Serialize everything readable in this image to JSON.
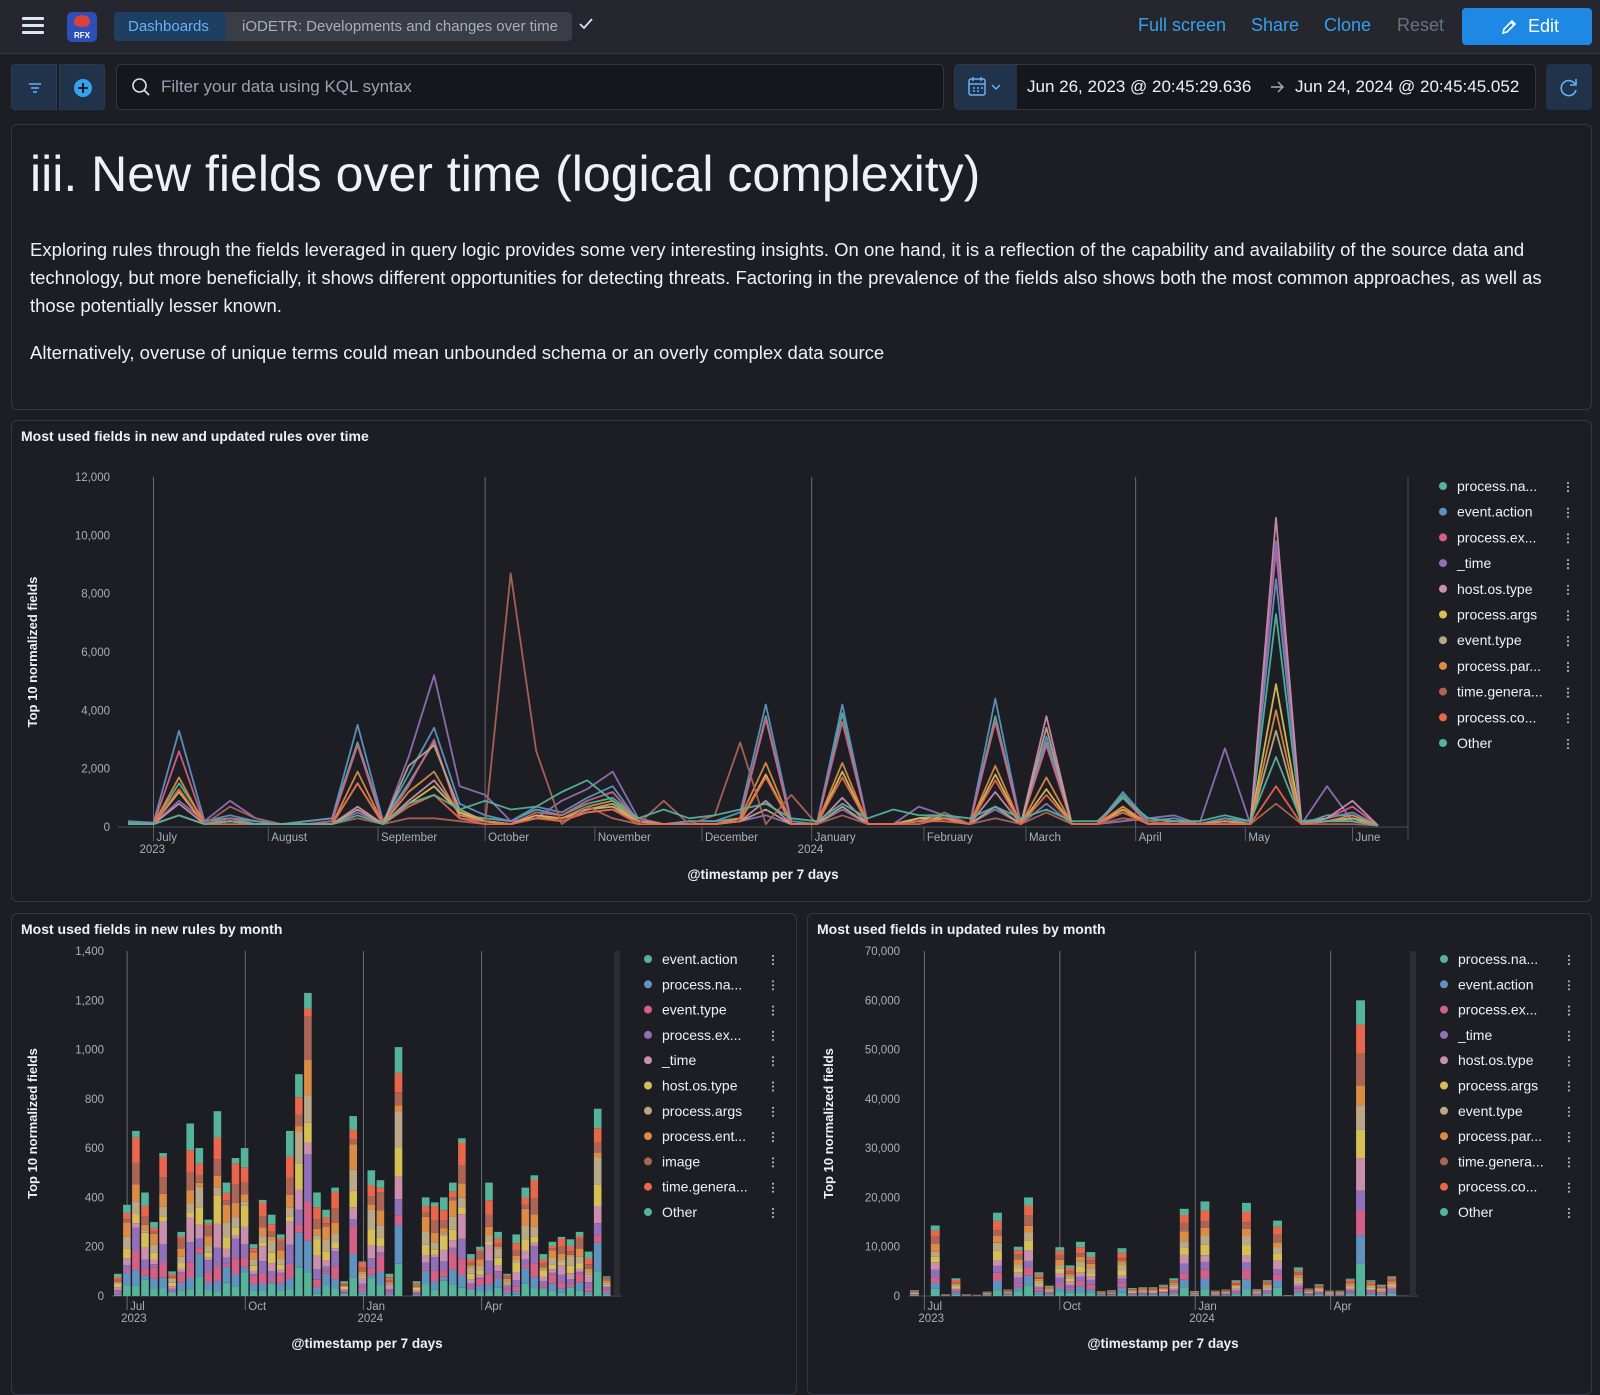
{
  "header": {
    "breadcrumb_root": "Dashboards",
    "breadcrumb_current": "iODETR: Developments and changes over time",
    "logo_text": "RFX",
    "links": {
      "full_screen": "Full screen",
      "share": "Share",
      "clone": "Clone",
      "reset": "Reset"
    },
    "edit_label": "Edit"
  },
  "filter": {
    "placeholder": "Filter your data using KQL syntax",
    "start": "Jun 26, 2023 @ 20:45:29.636",
    "end": "Jun 24, 2024 @ 20:45:45.052"
  },
  "markdown": {
    "title": "iii. New fields over time (logical complexity)",
    "p1": "Exploring rules through the fields leveraged in query logic provides some very interesting insights. On one hand, it is a reflection of the capability and availability of the source data and technology, but more beneficially, it shows different opportunities for detecting threats. Factoring in the prevalence of the fields also shows both the most common approaches, as well as those potentially lesser known.",
    "p2": "Alternatively, overuse of unique terms could mean unbounded schema or an overly complex data source"
  },
  "colors": [
    "#54b399",
    "#6092c0",
    "#d36086",
    "#9170b8",
    "#ca8eae",
    "#d6bf57",
    "#b9a888",
    "#da8b45",
    "#aa6556",
    "#e7664c",
    "#54b399"
  ],
  "chart_data": [
    {
      "type": "line",
      "title": "Most used fields in new and updated rules over time",
      "xlabel": "@timestamp per 7 days",
      "ylabel": "Top 10 normalized fields",
      "ylim": [
        0,
        12000
      ],
      "yticks": [
        "0",
        "2,000",
        "4,000",
        "6,000",
        "8,000",
        "10,000",
        "12,000"
      ],
      "xticks": [
        {
          "label": "July",
          "sub": "2023",
          "week": 1
        },
        {
          "label": "August",
          "week": 5.5
        },
        {
          "label": "September",
          "week": 9.8
        },
        {
          "label": "October",
          "week": 14
        },
        {
          "label": "November",
          "week": 18.3
        },
        {
          "label": "December",
          "week": 22.5
        },
        {
          "label": "January",
          "sub": "2024",
          "week": 26.8
        },
        {
          "label": "February",
          "week": 31.2
        },
        {
          "label": "March",
          "week": 35.2
        },
        {
          "label": "April",
          "week": 39.5
        },
        {
          "label": "May",
          "week": 43.8
        },
        {
          "label": "June",
          "week": 48
        }
      ],
      "grid_weeks": [
        1,
        14,
        26.8,
        39.5
      ],
      "grid": true,
      "legend": "right",
      "series": [
        {
          "name": "process.na...",
          "values": [
            150,
            100,
            1500,
            200,
            300,
            200,
            100,
            200,
            300,
            2900,
            200,
            1500,
            2900,
            400,
            300,
            200,
            600,
            400,
            800,
            1000,
            300,
            100,
            200,
            200,
            300,
            3800,
            100,
            100,
            3900,
            100,
            100,
            200,
            400,
            100,
            3800,
            100,
            2900,
            100,
            100,
            1100,
            100,
            200,
            100,
            300,
            100,
            7300,
            100,
            400,
            400,
            50
          ]
        },
        {
          "name": "event.action",
          "values": [
            200,
            150,
            3300,
            200,
            400,
            200,
            100,
            200,
            300,
            3500,
            200,
            1800,
            3400,
            800,
            400,
            200,
            700,
            500,
            1000,
            1400,
            200,
            100,
            200,
            200,
            500,
            4200,
            200,
            100,
            4200,
            100,
            100,
            300,
            400,
            100,
            4400,
            100,
            3100,
            100,
            100,
            1200,
            200,
            300,
            100,
            300,
            200,
            8500,
            200,
            300,
            500,
            50
          ]
        },
        {
          "name": "process.ex...",
          "values": [
            100,
            100,
            2600,
            100,
            300,
            100,
            100,
            100,
            200,
            2800,
            100,
            1400,
            3000,
            300,
            200,
            100,
            500,
            400,
            900,
            1200,
            200,
            100,
            100,
            100,
            300,
            3700,
            100,
            100,
            3600,
            100,
            100,
            100,
            300,
            100,
            3600,
            100,
            2800,
            100,
            100,
            1000,
            100,
            200,
            100,
            200,
            100,
            9500,
            100,
            300,
            700,
            50
          ]
        },
        {
          "name": "_time",
          "values": [
            100,
            100,
            900,
            200,
            900,
            300,
            100,
            100,
            100,
            500,
            100,
            2400,
            5200,
            1400,
            1100,
            200,
            300,
            900,
            1300,
            1900,
            300,
            100,
            100,
            100,
            200,
            400,
            100,
            100,
            600,
            100,
            100,
            700,
            400,
            100,
            600,
            100,
            800,
            100,
            100,
            200,
            300,
            400,
            100,
            2700,
            100,
            9800,
            100,
            1400,
            200,
            50
          ]
        },
        {
          "name": "host.os.type",
          "values": [
            100,
            100,
            800,
            100,
            200,
            100,
            100,
            100,
            100,
            700,
            100,
            900,
            1600,
            500,
            200,
            100,
            300,
            300,
            500,
            600,
            200,
            100,
            100,
            100,
            200,
            900,
            100,
            100,
            1000,
            100,
            100,
            200,
            300,
            100,
            1200,
            100,
            3800,
            100,
            100,
            500,
            100,
            100,
            100,
            200,
            100,
            10600,
            100,
            300,
            900,
            50
          ]
        },
        {
          "name": "process.args",
          "values": [
            100,
            100,
            1200,
            100,
            200,
            100,
            100,
            100,
            100,
            1500,
            100,
            800,
            1400,
            500,
            200,
            100,
            400,
            300,
            600,
            700,
            200,
            100,
            100,
            100,
            200,
            1800,
            100,
            100,
            1900,
            100,
            100,
            300,
            300,
            100,
            1800,
            100,
            1300,
            100,
            100,
            600,
            100,
            100,
            100,
            200,
            100,
            4900,
            100,
            200,
            300,
            50
          ]
        },
        {
          "name": "event.type",
          "values": [
            100,
            100,
            400,
            100,
            200,
            100,
            100,
            100,
            100,
            600,
            100,
            2100,
            2800,
            600,
            200,
            100,
            300,
            300,
            600,
            800,
            200,
            100,
            100,
            100,
            200,
            600,
            100,
            100,
            700,
            100,
            100,
            200,
            300,
            100,
            700,
            100,
            3400,
            100,
            100,
            700,
            100,
            100,
            100,
            200,
            100,
            3300,
            100,
            200,
            300,
            50
          ]
        },
        {
          "name": "process.par...",
          "values": [
            100,
            100,
            1700,
            100,
            200,
            100,
            100,
            100,
            100,
            1900,
            100,
            1200,
            1900,
            400,
            200,
            100,
            300,
            300,
            700,
            900,
            200,
            100,
            100,
            100,
            300,
            2200,
            100,
            100,
            2200,
            100,
            100,
            200,
            300,
            100,
            2100,
            100,
            1700,
            100,
            100,
            700,
            100,
            100,
            100,
            200,
            100,
            4000,
            100,
            200,
            400,
            50
          ]
        },
        {
          "name": "time.genera...",
          "values": [
            100,
            100,
            400,
            100,
            700,
            300,
            100,
            100,
            100,
            300,
            100,
            300,
            300,
            200,
            100,
            8700,
            2600,
            100,
            700,
            300,
            100,
            900,
            100,
            400,
            2900,
            100,
            1100,
            100,
            400,
            100,
            100,
            100,
            500,
            100,
            300,
            100,
            500,
            100,
            100,
            300,
            200,
            100,
            100,
            100,
            100,
            800,
            100,
            100,
            100,
            50
          ]
        },
        {
          "name": "process.co...",
          "values": [
            100,
            100,
            1300,
            100,
            100,
            100,
            100,
            100,
            100,
            1500,
            100,
            700,
            1100,
            300,
            100,
            100,
            300,
            200,
            500,
            600,
            100,
            100,
            100,
            100,
            200,
            1700,
            100,
            100,
            1700,
            100,
            100,
            200,
            200,
            100,
            1600,
            100,
            1100,
            100,
            100,
            500,
            100,
            100,
            100,
            100,
            100,
            1400,
            100,
            200,
            200,
            50
          ]
        },
        {
          "name": "Other",
          "values": [
            100,
            100,
            400,
            100,
            200,
            100,
            100,
            100,
            100,
            400,
            100,
            800,
            1100,
            600,
            900,
            600,
            700,
            1200,
            1600,
            900,
            300,
            600,
            300,
            400,
            600,
            800,
            300,
            200,
            800,
            300,
            600,
            400,
            400,
            300,
            700,
            300,
            600,
            200,
            200,
            1000,
            300,
            200,
            200,
            400,
            200,
            2400,
            200,
            200,
            200,
            50
          ]
        }
      ]
    },
    {
      "type": "bar",
      "title": "Most used fields in new rules by month",
      "xlabel": "@timestamp per 7 days",
      "ylabel": "Top 10 normalized fields",
      "ylim": [
        0,
        1400
      ],
      "yticks": [
        "0",
        "200",
        "400",
        "600",
        "800",
        "1,000",
        "1,200",
        "1,400"
      ],
      "xticks": [
        {
          "label": "Jul",
          "sub": "2023",
          "index": 1
        },
        {
          "label": "Oct",
          "index": 14
        },
        {
          "label": "Jan",
          "sub": "2024",
          "index": 27
        },
        {
          "label": "Apr",
          "index": 40
        }
      ],
      "grid": true,
      "legend": "right",
      "series_names": [
        "event.action",
        "process.na...",
        "event.type",
        "process.ex...",
        "_time",
        "host.os.type",
        "process.args",
        "process.ent...",
        "image",
        "time.genera...",
        "Other"
      ],
      "totals": [
        90,
        370,
        670,
        420,
        300,
        580,
        100,
        260,
        700,
        600,
        310,
        750,
        460,
        560,
        600,
        210,
        390,
        330,
        250,
        670,
        900,
        1230,
        420,
        350,
        440,
        60,
        730,
        140,
        510,
        470,
        90,
        1010,
        0,
        60,
        400,
        380,
        400,
        460,
        640,
        170,
        200,
        460,
        260,
        90,
        250,
        440,
        490,
        170,
        220,
        240,
        230,
        260,
        180,
        760,
        80
      ],
      "mix": "varied"
    },
    {
      "type": "bar",
      "title": "Most used fields in updated rules by month",
      "xlabel": "@timestamp per 7 days",
      "ylabel": "Top 10 normalized fields",
      "ylim": [
        0,
        70000
      ],
      "yticks": [
        "0",
        "10,000",
        "20,000",
        "30,000",
        "40,000",
        "50,000",
        "60,000",
        "70,000"
      ],
      "xticks": [
        {
          "label": "Jul",
          "sub": "2023",
          "index": 1
        },
        {
          "label": "Oct",
          "index": 14
        },
        {
          "label": "Jan",
          "sub": "2024",
          "index": 27
        },
        {
          "label": "Apr",
          "index": 40
        }
      ],
      "grid": true,
      "legend": "right",
      "series_names": [
        "process.na...",
        "event.action",
        "process.ex...",
        "_time",
        "host.os.type",
        "process.args",
        "event.type",
        "process.par...",
        "time.genera...",
        "process.co...",
        "Other"
      ],
      "totals": [
        1200,
        0,
        14300,
        400,
        3600,
        400,
        300,
        900,
        16900,
        1300,
        10000,
        20000,
        4800,
        2100,
        9900,
        6200,
        11000,
        8900,
        1000,
        1200,
        9700,
        1600,
        1800,
        1800,
        2300,
        3600,
        17700,
        1000,
        19200,
        1100,
        1300,
        3200,
        18900,
        1400,
        3200,
        15300,
        200,
        5800,
        1500,
        2400,
        1100,
        1100,
        3500,
        60000,
        3200,
        2300,
        4000,
        100
      ],
      "mix": "uniform"
    }
  ]
}
